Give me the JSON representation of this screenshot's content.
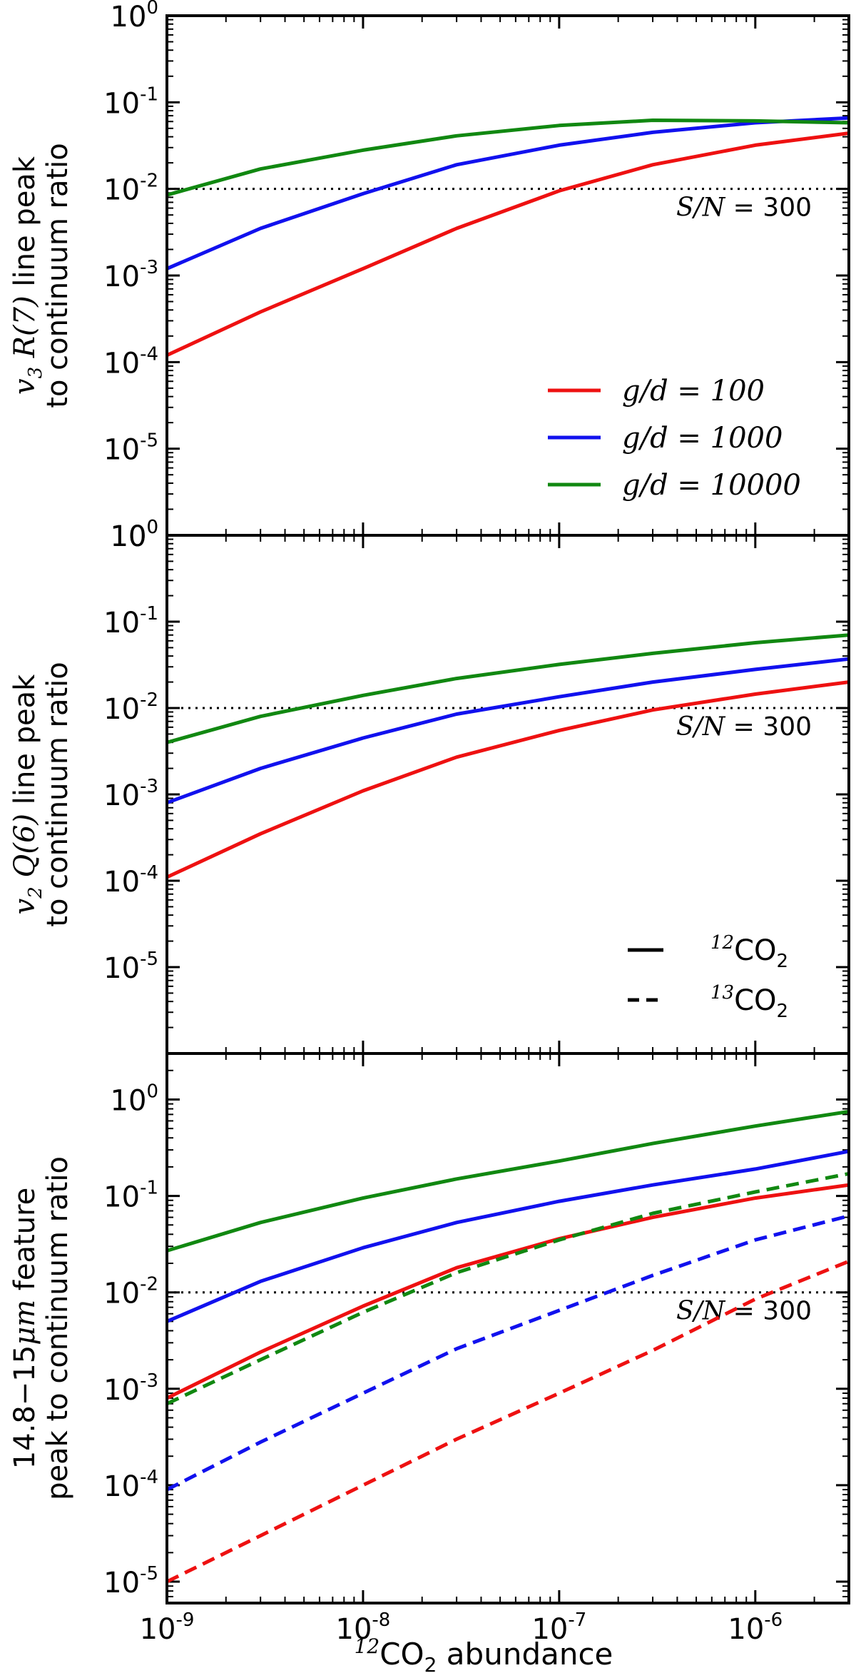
{
  "figure": {
    "xlabel_sup": "12",
    "xlabel_main": "CO",
    "xlabel_sub": "2",
    "xlabel_tail": " abundance",
    "x_ticks": [
      {
        "label": "10",
        "exp": "-9",
        "value": 1e-09
      },
      {
        "label": "10",
        "exp": "-8",
        "value": 1e-08
      },
      {
        "label": "10",
        "exp": "-7",
        "value": 1e-07
      },
      {
        "label": "10",
        "exp": "-6",
        "value": 1e-06
      }
    ],
    "sn_label_var": "S/N",
    "sn_label_eq": " = 300",
    "colors": {
      "red": "#ee1111",
      "blue": "#1111ee",
      "green": "#118811"
    }
  },
  "chart_data": [
    {
      "type": "line",
      "panel": "top",
      "ylabel_line1_pre": "v",
      "ylabel_line1_sub": "3",
      "ylabel_line1_var": " R(7)",
      "ylabel_line1_post": " line peak",
      "ylabel_line2": "to continuum ratio",
      "xscale": "log",
      "yscale": "log",
      "xlim": [
        1e-09,
        3e-06
      ],
      "ylim": [
        1e-06,
        1
      ],
      "y_ticks": [
        {
          "label": "10",
          "exp": "-5",
          "value": 1e-05
        },
        {
          "label": "10",
          "exp": "-4",
          "value": 0.0001
        },
        {
          "label": "10",
          "exp": "-3",
          "value": 0.001
        },
        {
          "label": "10",
          "exp": "-2",
          "value": 0.01
        },
        {
          "label": "10",
          "exp": "-1",
          "value": 0.1
        },
        {
          "label": "10",
          "exp": "0",
          "value": 1
        }
      ],
      "bottom_tick": {
        "label": "10",
        "exp": "0"
      },
      "threshold": 0.01,
      "x": [
        1e-09,
        3e-09,
        1e-08,
        3e-08,
        1e-07,
        3e-07,
        1e-06,
        3e-06
      ],
      "series": [
        {
          "name": "g/d=100",
          "color": "red",
          "dash": false,
          "values": [
            0.00012,
            0.00038,
            0.0012,
            0.0035,
            0.0095,
            0.019,
            0.032,
            0.044
          ]
        },
        {
          "name": "g/d=1000",
          "color": "blue",
          "dash": false,
          "values": [
            0.0012,
            0.0035,
            0.0088,
            0.019,
            0.032,
            0.045,
            0.058,
            0.066
          ]
        },
        {
          "name": "g/d=10000",
          "color": "green",
          "dash": false,
          "values": [
            0.0085,
            0.017,
            0.028,
            0.041,
            0.054,
            0.062,
            0.061,
            0.058
          ]
        }
      ],
      "legend": {
        "placement": "bottom-right",
        "entries": [
          {
            "pre": "g/d",
            "eq": " = 100",
            "color": "red",
            "dash": false
          },
          {
            "pre": "g/d",
            "eq": " = 1000",
            "color": "blue",
            "dash": false
          },
          {
            "pre": "g/d",
            "eq": " = 10000",
            "color": "green",
            "dash": false
          }
        ]
      }
    },
    {
      "type": "line",
      "panel": "middle",
      "ylabel_line1_pre": "v",
      "ylabel_line1_sub": "2",
      "ylabel_line1_var": " Q(6)",
      "ylabel_line1_post": " line peak",
      "ylabel_line2": "to continuum ratio",
      "xscale": "log",
      "yscale": "log",
      "xlim": [
        1e-09,
        3e-06
      ],
      "ylim": [
        1e-06,
        1
      ],
      "y_ticks": [
        {
          "label": "10",
          "exp": "-5",
          "value": 1e-05
        },
        {
          "label": "10",
          "exp": "-4",
          "value": 0.0001
        },
        {
          "label": "10",
          "exp": "-3",
          "value": 0.001
        },
        {
          "label": "10",
          "exp": "-2",
          "value": 0.01
        },
        {
          "label": "10",
          "exp": "-1",
          "value": 0.1
        },
        {
          "label": "10",
          "exp": "0",
          "value": 1
        }
      ],
      "threshold": 0.01,
      "x": [
        1e-09,
        3e-09,
        1e-08,
        3e-08,
        1e-07,
        3e-07,
        1e-06,
        3e-06
      ],
      "series": [
        {
          "name": "g/d=100",
          "color": "red",
          "dash": false,
          "values": [
            0.00011,
            0.00035,
            0.0011,
            0.0027,
            0.0055,
            0.0095,
            0.0145,
            0.02
          ]
        },
        {
          "name": "g/d=1000",
          "color": "blue",
          "dash": false,
          "values": [
            0.0008,
            0.002,
            0.0045,
            0.0085,
            0.0135,
            0.02,
            0.028,
            0.037
          ]
        },
        {
          "name": "g/d=10000",
          "color": "green",
          "dash": false,
          "values": [
            0.004,
            0.008,
            0.014,
            0.022,
            0.032,
            0.043,
            0.057,
            0.07
          ]
        }
      ],
      "legend": {
        "placement": "bottom-right",
        "entries": [
          {
            "sup": "12",
            "main": "CO",
            "sub": "2",
            "dash": false
          },
          {
            "sup": "13",
            "main": "CO",
            "sub": "2",
            "dash": true
          }
        ]
      }
    },
    {
      "type": "line",
      "panel": "bottom",
      "ylabel_line1_pre": "14.8−15",
      "ylabel_line1_var": "μm",
      "ylabel_line1_post": " feature",
      "ylabel_line2": "peak to continuum ratio",
      "xscale": "log",
      "yscale": "log",
      "xlim": [
        1e-09,
        3e-06
      ],
      "ylim": [
        6e-06,
        3
      ],
      "y_ticks": [
        {
          "label": "10",
          "exp": "-5",
          "value": 1e-05
        },
        {
          "label": "10",
          "exp": "-4",
          "value": 0.0001
        },
        {
          "label": "10",
          "exp": "-3",
          "value": 0.001
        },
        {
          "label": "10",
          "exp": "-2",
          "value": 0.01
        },
        {
          "label": "10",
          "exp": "-1",
          "value": 0.1
        },
        {
          "label": "10",
          "exp": "0",
          "value": 1
        }
      ],
      "threshold": 0.01,
      "x": [
        1e-09,
        3e-09,
        1e-08,
        3e-08,
        1e-07,
        3e-07,
        1e-06,
        3e-06
      ],
      "series": [
        {
          "name": "12CO2 g/d=100",
          "color": "red",
          "dash": false,
          "values": [
            0.0008,
            0.0024,
            0.0072,
            0.018,
            0.036,
            0.06,
            0.095,
            0.13
          ]
        },
        {
          "name": "12CO2 g/d=1000",
          "color": "blue",
          "dash": false,
          "values": [
            0.005,
            0.013,
            0.029,
            0.053,
            0.088,
            0.13,
            0.19,
            0.29
          ]
        },
        {
          "name": "12CO2 g/d=10000",
          "color": "green",
          "dash": false,
          "values": [
            0.027,
            0.053,
            0.095,
            0.15,
            0.23,
            0.35,
            0.53,
            0.75
          ]
        },
        {
          "name": "13CO2 g/d=100",
          "color": "red",
          "dash": true,
          "values": [
            1e-05,
            3e-05,
            0.0001,
            0.0003,
            0.0009,
            0.0025,
            0.0085,
            0.021
          ]
        },
        {
          "name": "13CO2 g/d=1000",
          "color": "blue",
          "dash": true,
          "values": [
            9e-05,
            0.00028,
            0.0009,
            0.0026,
            0.0065,
            0.015,
            0.035,
            0.062
          ]
        },
        {
          "name": "13CO2 g/d=10000",
          "color": "green",
          "dash": true,
          "values": [
            0.0007,
            0.002,
            0.0062,
            0.016,
            0.035,
            0.066,
            0.11,
            0.17
          ]
        }
      ]
    }
  ]
}
